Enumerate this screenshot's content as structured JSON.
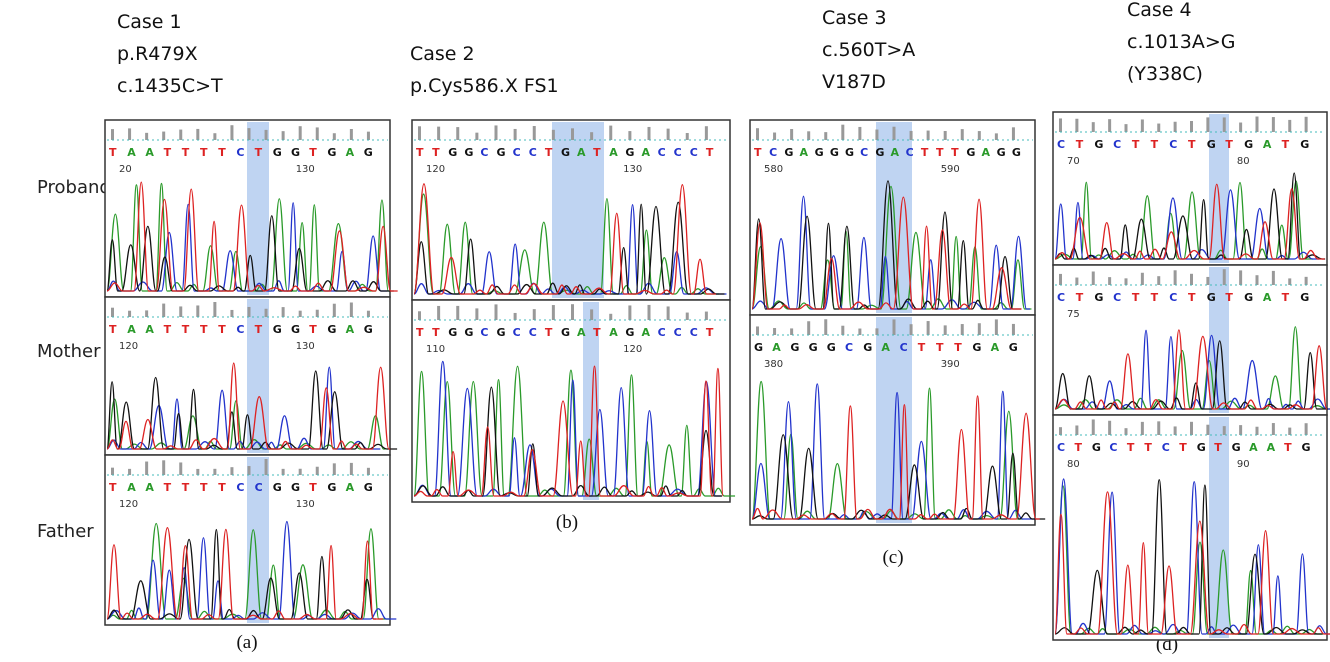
{
  "row_labels": [
    "Proband",
    "Mother",
    "Father"
  ],
  "panels": [
    {
      "label": "(a)",
      "heading": [
        "Case 1",
        "p.R479X",
        "c.1435C>T"
      ],
      "traces": [
        {
          "sequence": "TAATTTTCTGGTGAG",
          "positions": [
            "20",
            "130"
          ]
        },
        {
          "sequence": "TAATTTTCTGGTGAG",
          "positions": [
            "120",
            "130"
          ]
        },
        {
          "sequence": "TAATTTTCCGGTGAG",
          "positions": [
            "120",
            "130"
          ]
        }
      ]
    },
    {
      "label": "(b)",
      "heading": [
        "Case 2",
        "p.Cys586.X FS1"
      ],
      "traces": [
        {
          "sequence": "TTGGCGCCTGATAGACCCT",
          "positions": [
            "120",
            "130"
          ]
        },
        {
          "sequence": "TTGGCGCCTGATAGACCCT",
          "positions": [
            "110",
            "120"
          ]
        }
      ]
    },
    {
      "label": "(c)",
      "heading": [
        "Case 3",
        "c.560T>A",
        "V187D"
      ],
      "traces": [
        {
          "sequence": "TCGAGGGCGACTTTGAGG",
          "positions": [
            "580",
            "590"
          ]
        },
        {
          "sequence": "GAGGGCGACTTTGAG",
          "positions": [
            "380",
            "390"
          ]
        }
      ]
    },
    {
      "label": "(d)",
      "heading": [
        "Case 4",
        "c.1013A>G",
        "(Y338C)"
      ],
      "traces": [
        {
          "sequence": "CTGCTTCTGTGATG",
          "positions": [
            "70",
            "80"
          ]
        },
        {
          "sequence": "CTGCTTCTGTGATG",
          "positions": [
            "75"
          ]
        },
        {
          "sequence": "CTGCTTCTGTGAATG",
          "positions": [
            "80",
            "90"
          ]
        }
      ]
    }
  ]
}
